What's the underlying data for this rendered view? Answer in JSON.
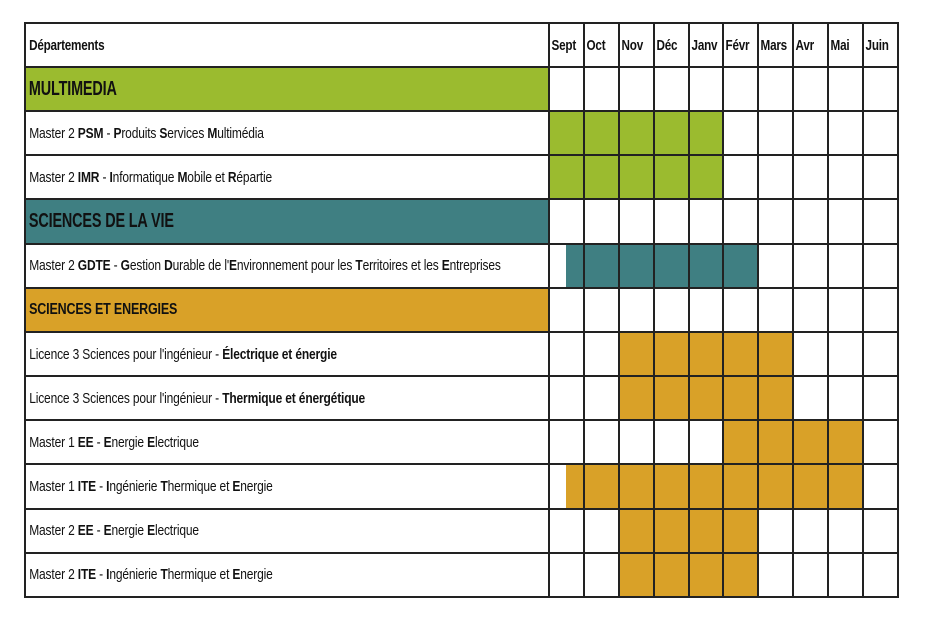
{
  "colors": {
    "multimedia": "#9bbb2f",
    "sciences_vie": "#3f7f82",
    "sciences_energies": "#d9a128",
    "grid": "#222222"
  },
  "header": {
    "label": "Départements",
    "months": [
      "Sept",
      "Oct",
      "Nov",
      "Déc",
      "Janv",
      "Févr",
      "Mars",
      "Avr",
      "Mai",
      "Juin"
    ]
  },
  "rows": [
    {
      "type": "department",
      "color": "multimedia",
      "parts": [
        {
          "t": "MULTIMEDIA",
          "b": true
        }
      ],
      "months": [
        0,
        0,
        0,
        0,
        0,
        0,
        0,
        0,
        0,
        0
      ]
    },
    {
      "type": "program",
      "color": "multimedia",
      "parts": [
        {
          "t": "Master 2 ",
          "b": false
        },
        {
          "t": "PSM",
          "b": true
        },
        {
          "t": " - ",
          "b": false
        },
        {
          "t": "P",
          "b": true
        },
        {
          "t": "roduits ",
          "b": false
        },
        {
          "t": "S",
          "b": true
        },
        {
          "t": "ervices ",
          "b": false
        },
        {
          "t": "M",
          "b": true
        },
        {
          "t": "ultimédia",
          "b": false
        }
      ],
      "months": [
        1,
        1,
        1,
        1,
        1,
        0,
        0,
        0,
        0,
        0
      ]
    },
    {
      "type": "program",
      "color": "multimedia",
      "parts": [
        {
          "t": "Master 2 ",
          "b": false
        },
        {
          "t": "IMR",
          "b": true
        },
        {
          "t": " - ",
          "b": false
        },
        {
          "t": "I",
          "b": true
        },
        {
          "t": "nformatique ",
          "b": false
        },
        {
          "t": "M",
          "b": true
        },
        {
          "t": "obile et ",
          "b": false
        },
        {
          "t": "R",
          "b": true
        },
        {
          "t": "épartie",
          "b": false
        }
      ],
      "months": [
        1,
        1,
        1,
        1,
        1,
        0,
        0,
        0,
        0,
        0
      ]
    },
    {
      "type": "department",
      "color": "sciences_vie",
      "parts": [
        {
          "t": "SCIENCES DE LA VIE",
          "b": true
        }
      ],
      "months": [
        0,
        0,
        0,
        0,
        0,
        0,
        0,
        0,
        0,
        0
      ]
    },
    {
      "type": "program",
      "color": "sciences_vie",
      "parts": [
        {
          "t": "Master 2 ",
          "b": false
        },
        {
          "t": "GDTE",
          "b": true
        },
        {
          "t": " - ",
          "b": false
        },
        {
          "t": "G",
          "b": true
        },
        {
          "t": "estion ",
          "b": false
        },
        {
          "t": "D",
          "b": true
        },
        {
          "t": "urable de l'",
          "b": false
        },
        {
          "t": "E",
          "b": true
        },
        {
          "t": "nvironnement pour les ",
          "b": false
        },
        {
          "t": "T",
          "b": true
        },
        {
          "t": "erritoires et les ",
          "b": false
        },
        {
          "t": "E",
          "b": true
        },
        {
          "t": "ntreprises",
          "b": false
        }
      ],
      "months": [
        0.5,
        1,
        1,
        1,
        1,
        1,
        0,
        0,
        0,
        0
      ]
    },
    {
      "type": "department-small",
      "color": "sciences_energies",
      "parts": [
        {
          "t": "SCIENCES ET ENERGIES",
          "b": true
        }
      ],
      "months": [
        0,
        0,
        0,
        0,
        0,
        0,
        0,
        0,
        0,
        0
      ]
    },
    {
      "type": "program",
      "color": "sciences_energies",
      "parts": [
        {
          "t": "Licence 3 Sciences pour l'ingénieur - ",
          "b": false
        },
        {
          "t": "Électrique et énergie",
          "b": true
        }
      ],
      "months": [
        0,
        0,
        1,
        1,
        1,
        1,
        1,
        0,
        0,
        0
      ]
    },
    {
      "type": "program",
      "color": "sciences_energies",
      "parts": [
        {
          "t": "Licence 3 Sciences pour l'ingénieur - ",
          "b": false
        },
        {
          "t": "Thermique et énergétique",
          "b": true
        }
      ],
      "months": [
        0,
        0,
        1,
        1,
        1,
        1,
        1,
        0,
        0,
        0
      ]
    },
    {
      "type": "program",
      "color": "sciences_energies",
      "parts": [
        {
          "t": "Master 1 ",
          "b": false
        },
        {
          "t": "EE",
          "b": true
        },
        {
          "t": " - ",
          "b": false
        },
        {
          "t": "E",
          "b": true
        },
        {
          "t": "nergie ",
          "b": false
        },
        {
          "t": "E",
          "b": true
        },
        {
          "t": "lectrique",
          "b": false
        }
      ],
      "months": [
        0,
        0,
        0,
        0,
        0,
        1,
        1,
        1,
        1,
        0
      ]
    },
    {
      "type": "program",
      "color": "sciences_energies",
      "parts": [
        {
          "t": "Master 1 ",
          "b": false
        },
        {
          "t": "ITE",
          "b": true
        },
        {
          "t": " - ",
          "b": false
        },
        {
          "t": "I",
          "b": true
        },
        {
          "t": "ngénierie ",
          "b": false
        },
        {
          "t": "T",
          "b": true
        },
        {
          "t": "hermique et ",
          "b": false
        },
        {
          "t": "E",
          "b": true
        },
        {
          "t": "nergie",
          "b": false
        }
      ],
      "months": [
        0.5,
        1,
        1,
        1,
        1,
        1,
        1,
        1,
        1,
        0
      ]
    },
    {
      "type": "program",
      "color": "sciences_energies",
      "parts": [
        {
          "t": "Master 2 ",
          "b": false
        },
        {
          "t": "EE",
          "b": true
        },
        {
          "t": " - ",
          "b": false
        },
        {
          "t": "E",
          "b": true
        },
        {
          "t": "nergie ",
          "b": false
        },
        {
          "t": "E",
          "b": true
        },
        {
          "t": "lectrique",
          "b": false
        }
      ],
      "months": [
        0,
        0,
        1,
        1,
        1,
        1,
        0,
        0,
        0,
        0
      ]
    },
    {
      "type": "program",
      "color": "sciences_energies",
      "parts": [
        {
          "t": "Master 2 ",
          "b": false
        },
        {
          "t": "ITE",
          "b": true
        },
        {
          "t": " - ",
          "b": false
        },
        {
          "t": "I",
          "b": true
        },
        {
          "t": "ngénierie ",
          "b": false
        },
        {
          "t": "T",
          "b": true
        },
        {
          "t": "hermique et ",
          "b": false
        },
        {
          "t": "E",
          "b": true
        },
        {
          "t": "nergie",
          "b": false
        }
      ],
      "months": [
        0,
        0,
        1,
        1,
        1,
        1,
        0,
        0,
        0,
        0
      ]
    }
  ]
}
